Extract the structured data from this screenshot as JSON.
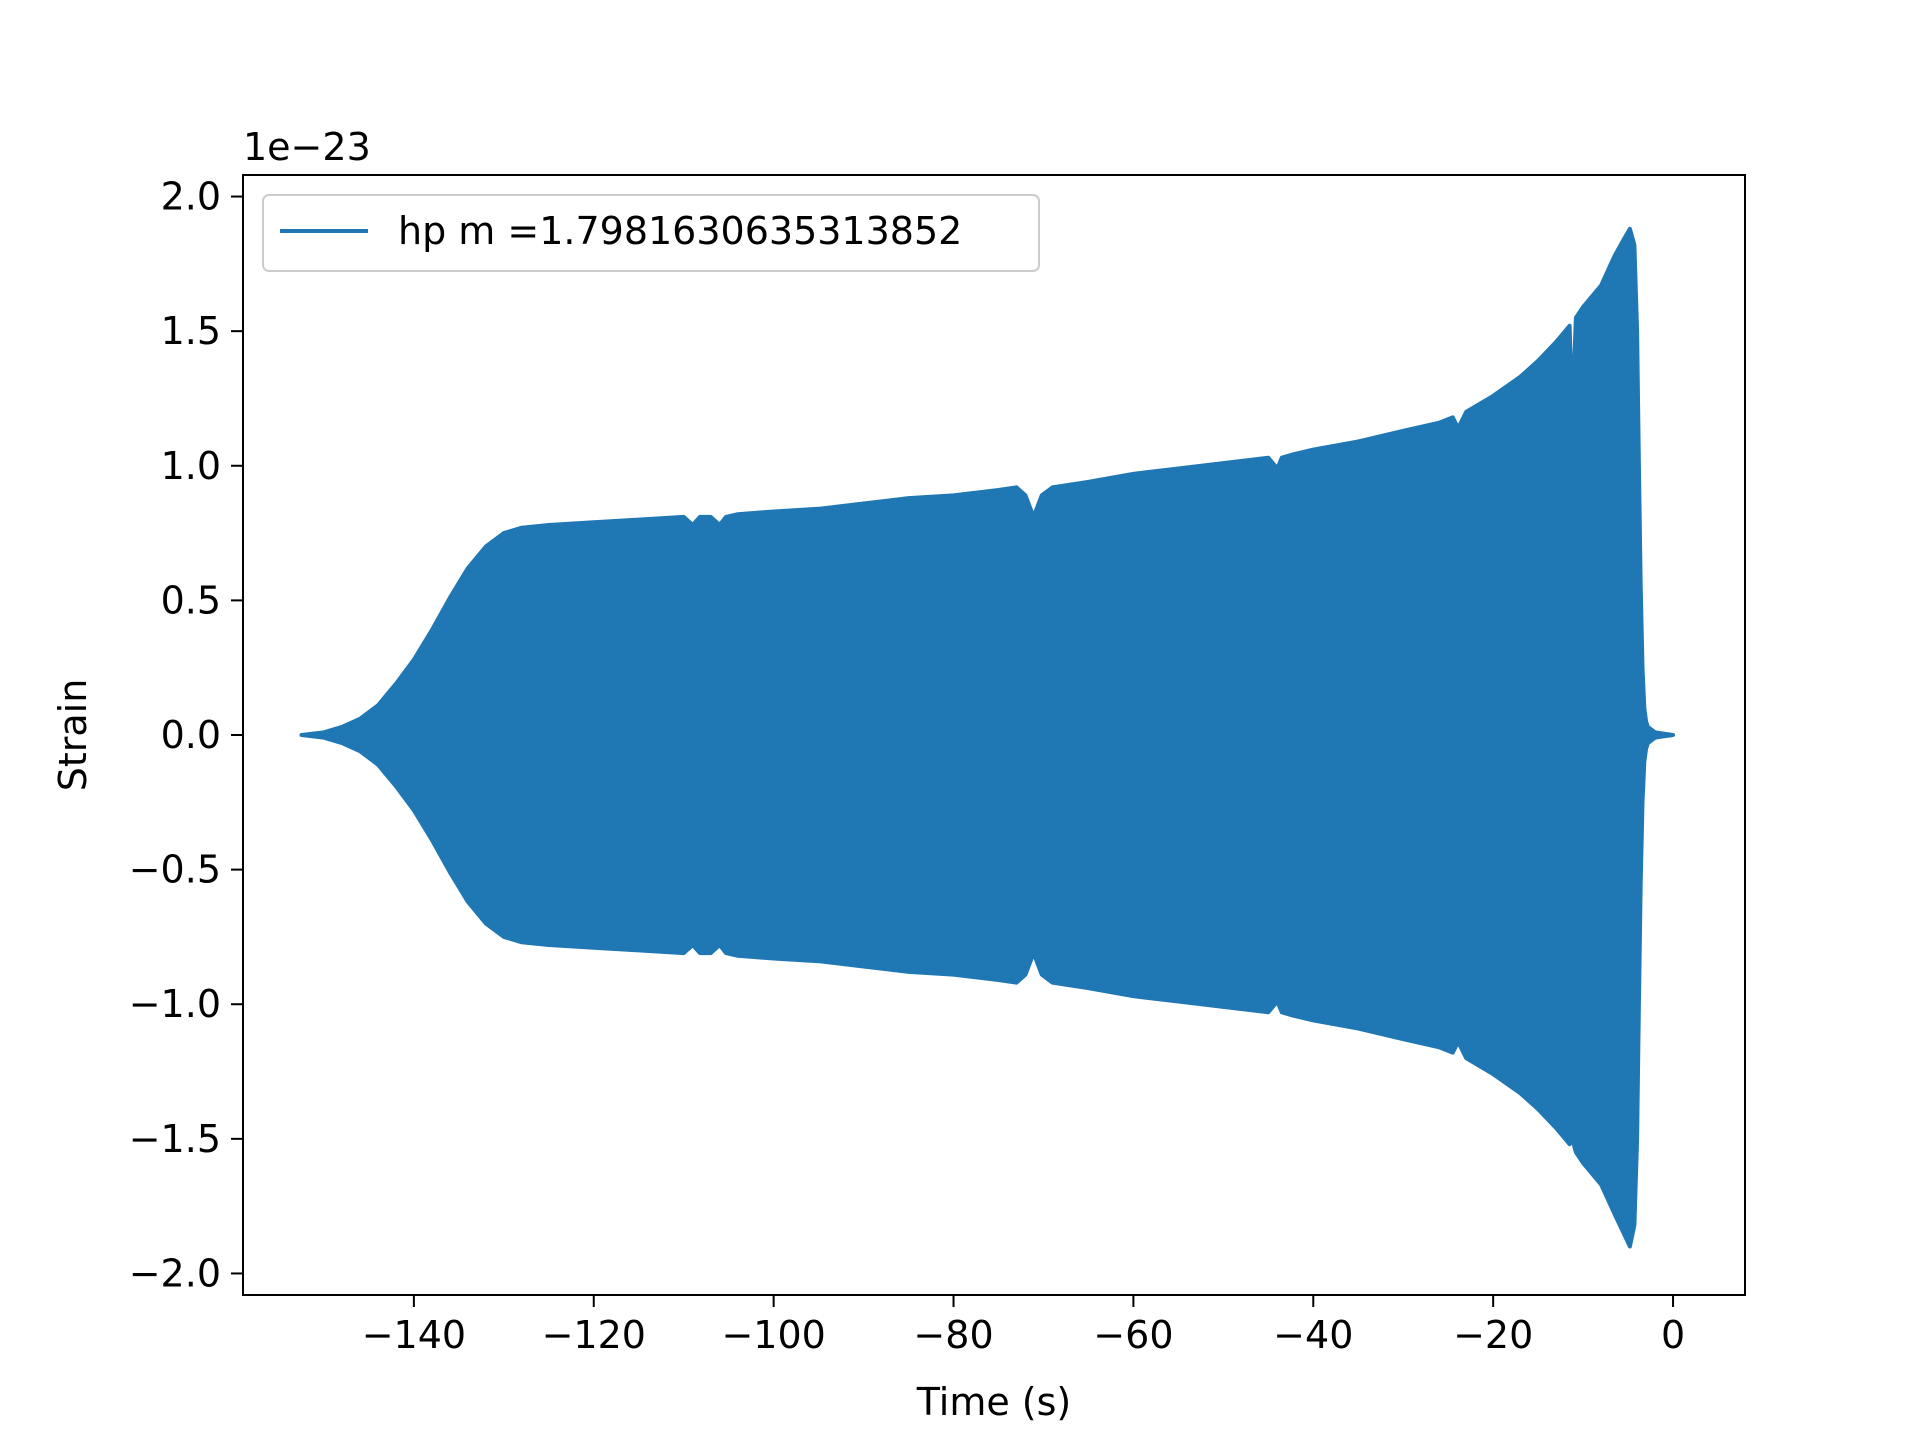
{
  "chart_data": {
    "type": "area",
    "title": "",
    "xlabel": "Time (s)",
    "ylabel": "Strain",
    "offset_text": "1e−23",
    "xlim": [
      -159,
      8
    ],
    "ylim": [
      -2.08,
      2.08
    ],
    "xticks": [
      -140,
      -120,
      -100,
      -80,
      -60,
      -40,
      -20,
      0
    ],
    "xtick_labels": [
      "−140",
      "−120",
      "−100",
      "−80",
      "−60",
      "−40",
      "−20",
      "0"
    ],
    "yticks": [
      -2.0,
      -1.5,
      -1.0,
      -0.5,
      0.0,
      0.5,
      1.0,
      1.5,
      2.0
    ],
    "ytick_labels": [
      "−2.0",
      "−1.5",
      "−1.0",
      "−0.5",
      "0.0",
      "0.5",
      "1.0",
      "1.5",
      "2.0"
    ],
    "grid": false,
    "legend_position": "upper left",
    "series": [
      {
        "name": "hp m =1.7981630635313852",
        "color": "#1f77b4",
        "envelope": {
          "x": [
            -152.5,
            -150,
            -148,
            -146,
            -144,
            -142,
            -140,
            -138,
            -136,
            -134,
            -132,
            -130,
            -128,
            -125,
            -120,
            -115,
            -110,
            -109,
            -108.2,
            -107,
            -106,
            -105.3,
            -104,
            -100,
            -95,
            -90,
            -85,
            -80,
            -75,
            -73,
            -72,
            -71.1,
            -70.2,
            -69,
            -65,
            -60,
            -55,
            -50,
            -45,
            -44,
            -43.5,
            -42.5,
            -40,
            -35,
            -30,
            -26,
            -24.5,
            -23.9,
            -23,
            -20,
            -17,
            -15,
            -13,
            -11.5,
            -11.2,
            -10.8,
            -10,
            -8,
            -6.5,
            -5.5,
            -4.8,
            -4.3,
            -4.0,
            -3.8,
            -3.6,
            -3.4,
            -3.2,
            -3.0,
            -2.8,
            -2.4,
            -2.0,
            -1.0,
            0.0
          ],
          "upper": [
            0.0,
            0.01,
            0.03,
            0.06,
            0.11,
            0.19,
            0.28,
            0.39,
            0.51,
            0.62,
            0.7,
            0.75,
            0.77,
            0.78,
            0.79,
            0.8,
            0.81,
            0.78,
            0.81,
            0.81,
            0.78,
            0.81,
            0.82,
            0.83,
            0.84,
            0.86,
            0.88,
            0.89,
            0.91,
            0.92,
            0.89,
            0.81,
            0.89,
            0.92,
            0.94,
            0.97,
            0.99,
            1.01,
            1.03,
            0.99,
            1.03,
            1.04,
            1.06,
            1.09,
            1.13,
            1.16,
            1.18,
            1.14,
            1.2,
            1.26,
            1.33,
            1.39,
            1.46,
            1.52,
            1.19,
            1.55,
            1.59,
            1.67,
            1.78,
            1.84,
            1.88,
            1.82,
            1.5,
            1.0,
            0.55,
            0.25,
            0.1,
            0.05,
            0.03,
            0.02,
            0.01,
            0.005,
            0.0
          ],
          "lower": [
            0.0,
            -0.01,
            -0.03,
            -0.06,
            -0.11,
            -0.19,
            -0.28,
            -0.39,
            -0.51,
            -0.62,
            -0.7,
            -0.75,
            -0.77,
            -0.78,
            -0.79,
            -0.8,
            -0.81,
            -0.78,
            -0.81,
            -0.81,
            -0.78,
            -0.81,
            -0.82,
            -0.83,
            -0.84,
            -0.86,
            -0.88,
            -0.89,
            -0.91,
            -0.92,
            -0.89,
            -0.81,
            -0.89,
            -0.92,
            -0.94,
            -0.97,
            -0.99,
            -1.01,
            -1.03,
            -0.99,
            -1.03,
            -1.04,
            -1.06,
            -1.09,
            -1.13,
            -1.16,
            -1.18,
            -1.14,
            -1.2,
            -1.26,
            -1.33,
            -1.39,
            -1.46,
            -1.52,
            -1.5,
            -1.55,
            -1.59,
            -1.67,
            -1.78,
            -1.85,
            -1.9,
            -1.82,
            -1.5,
            -1.0,
            -0.55,
            -0.25,
            -0.1,
            -0.05,
            -0.03,
            -0.02,
            -0.01,
            -0.005,
            0.0
          ]
        }
      }
    ]
  }
}
